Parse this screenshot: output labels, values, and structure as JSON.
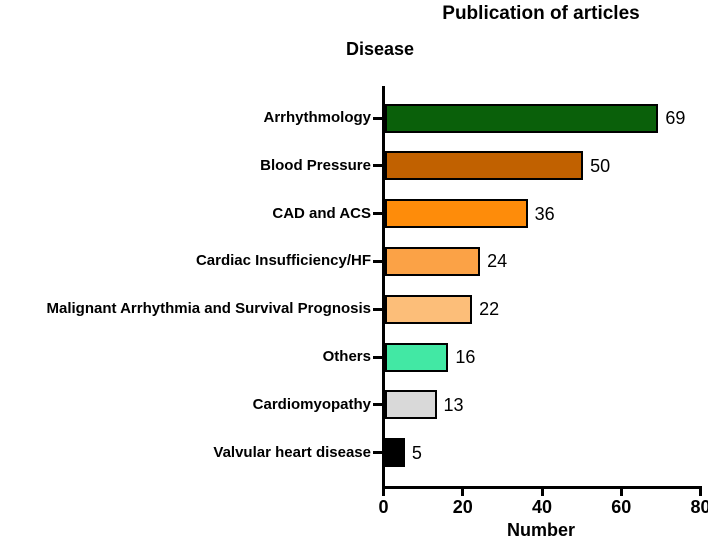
{
  "chart_data": {
    "type": "bar",
    "orientation": "horizontal",
    "title": "Publication of articles",
    "xlabel": "Number",
    "ylabel": "Disease",
    "xlim": [
      0,
      80
    ],
    "x_ticks": [
      0,
      20,
      40,
      60,
      80
    ],
    "grid": false,
    "legend": "none",
    "value_labels_shown": true,
    "categories": [
      "Arrhythmology",
      "Blood Pressure",
      "CAD and ACS",
      "Cardiac Insufficiency/HF",
      "Malignant Arrhythmia and Survival Prognosis",
      "Others",
      "Cardiomyopathy",
      "Valvular heart disease"
    ],
    "values": [
      69,
      50,
      36,
      24,
      22,
      16,
      13,
      5
    ],
    "bar_colors": [
      "#0a600a",
      "#c16100",
      "#fe8c0a",
      "#fba246",
      "#fcbe79",
      "#42e8a4",
      "#d9d9d9",
      "#000000"
    ],
    "bar_border_color": "#000000",
    "axis_color": "#000000",
    "text_color": "#000000",
    "background_color": "#ffffff"
  }
}
